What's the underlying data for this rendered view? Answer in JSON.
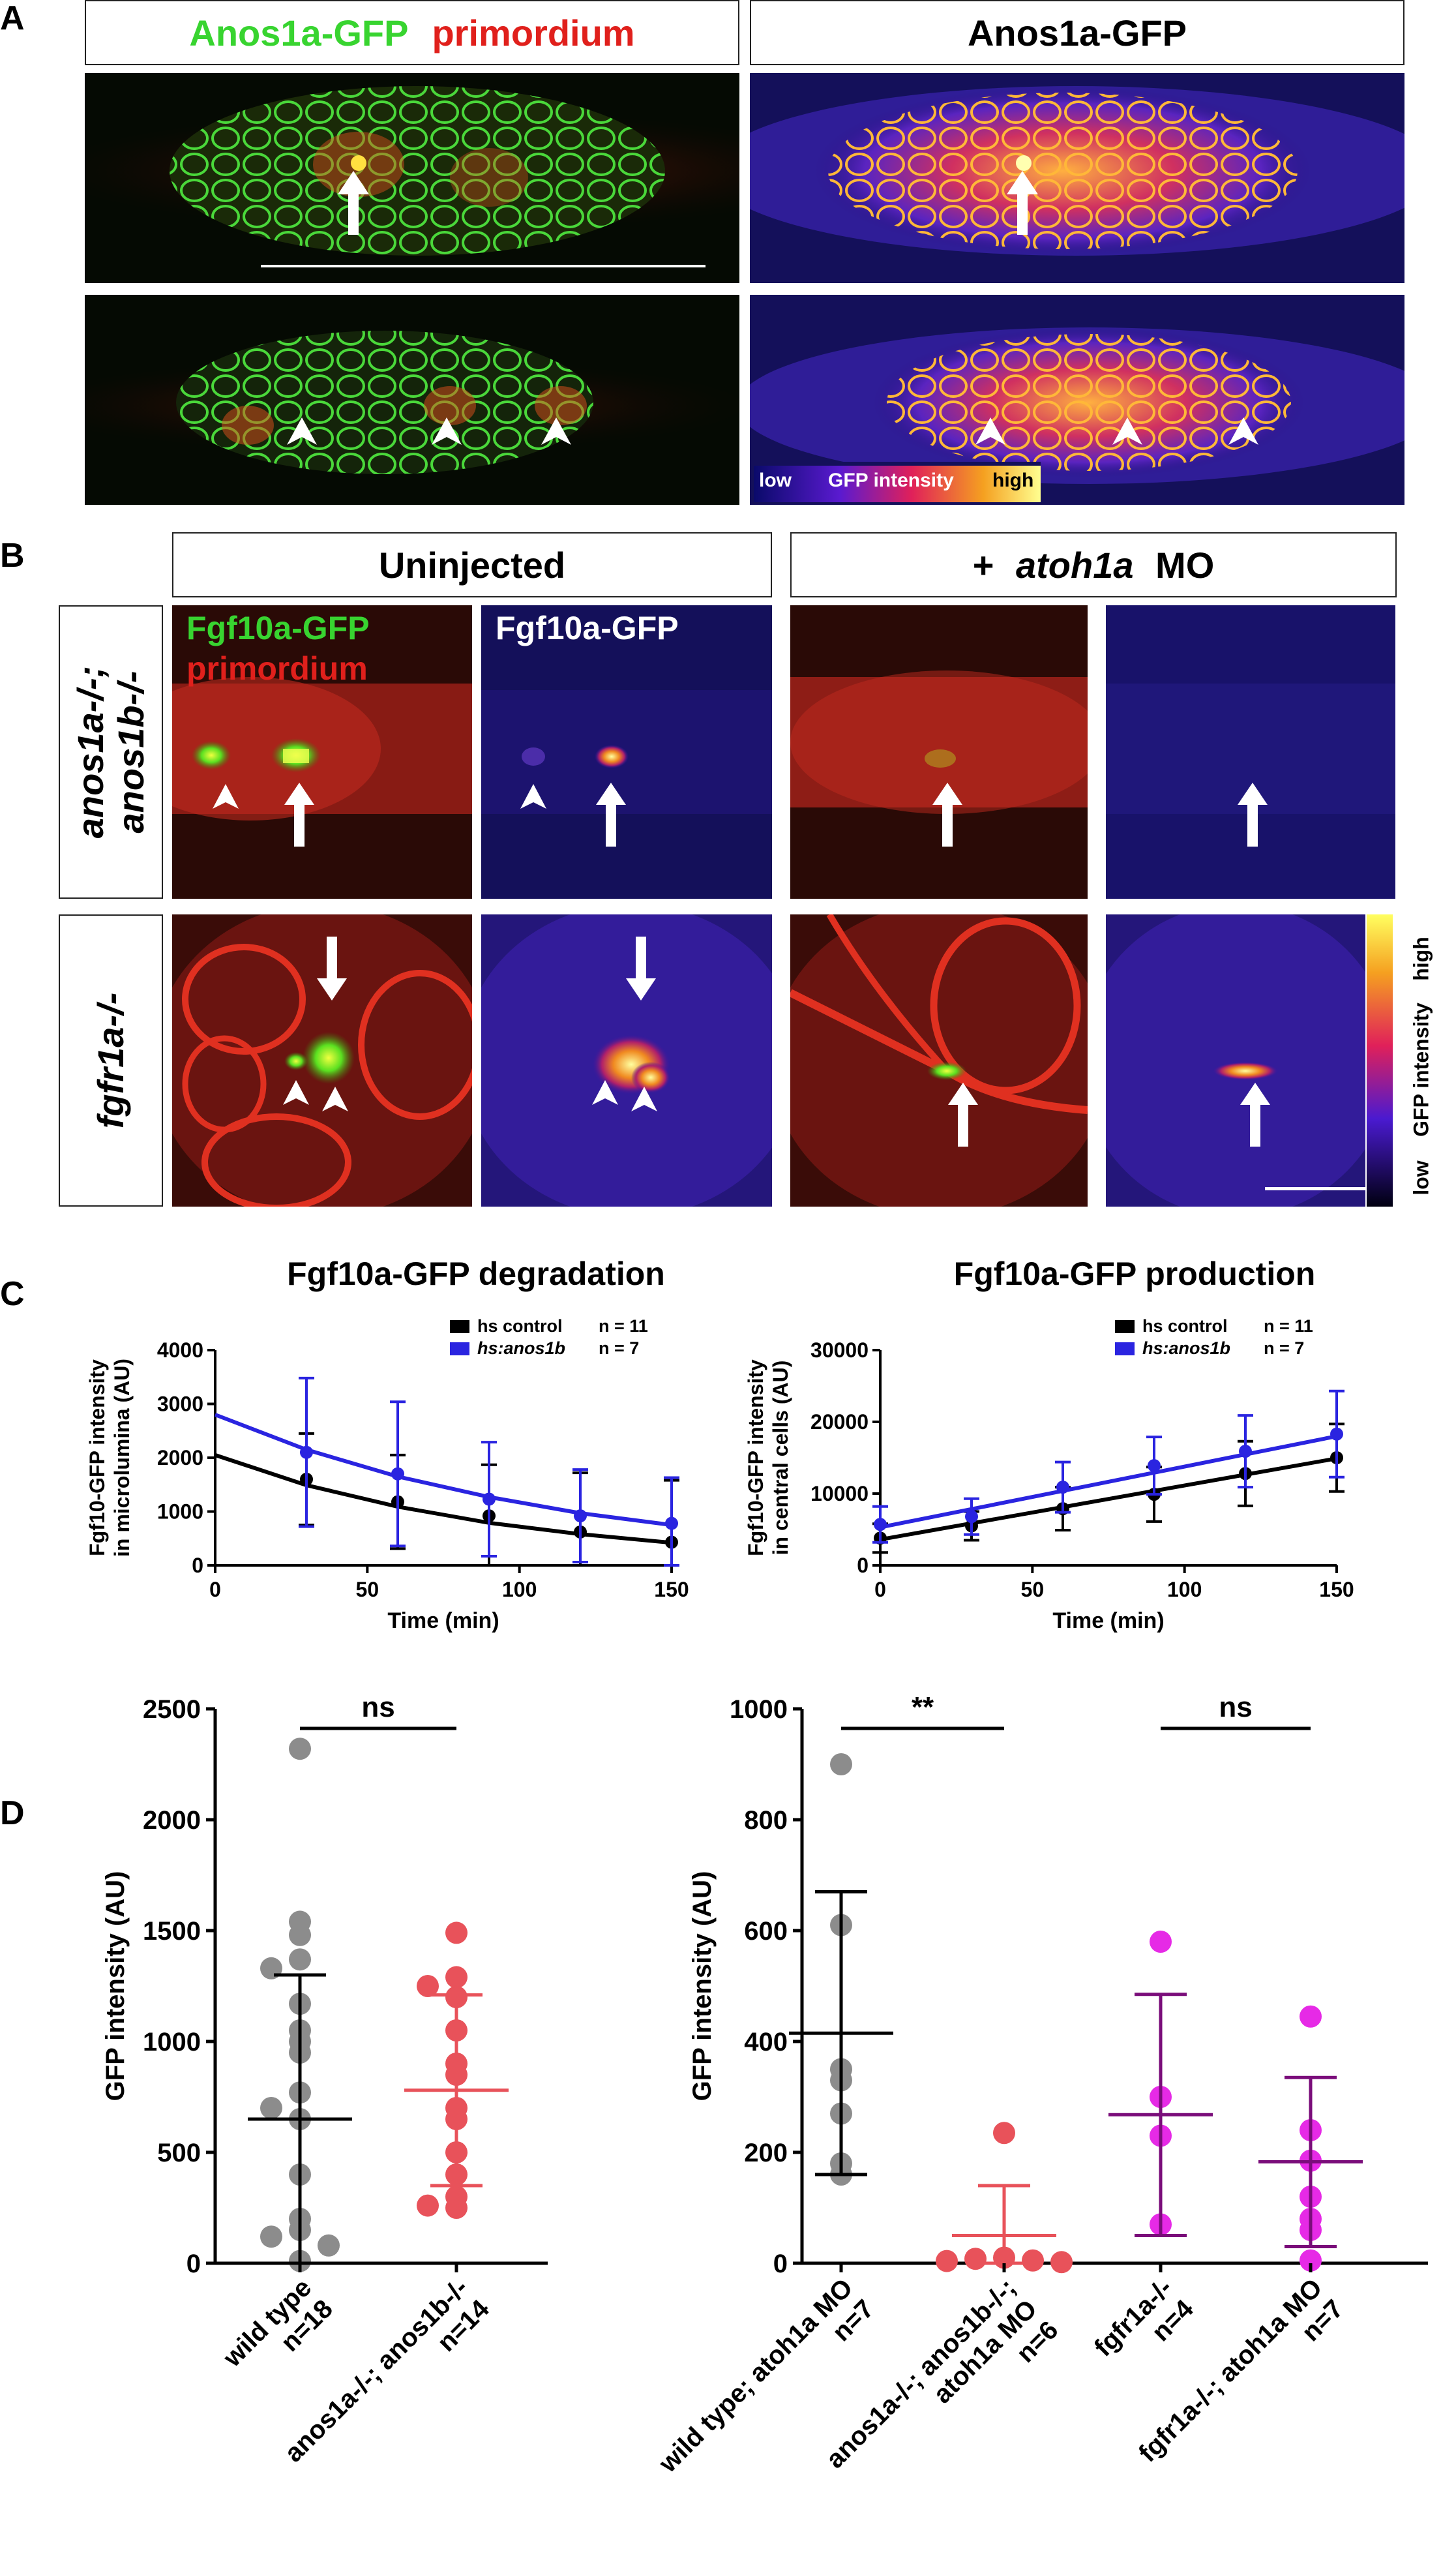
{
  "panel_a": {
    "letter": "A",
    "header_left_green": "Anos1a-GFP",
    "header_left_red": "primordium",
    "header_right": "Anos1a-GFP",
    "scale_low": "low",
    "scale_mid": "GFP intensity",
    "scale_high": "high"
  },
  "panel_b": {
    "letter": "B",
    "header_left": "Uninjected",
    "header_right_prefix": "+ ",
    "header_right_gene": "atoh1a",
    "header_right_suffix": " MO",
    "row1_label_line1": "anos1a-/-;",
    "row1_label_line2": "anos1b-/-",
    "row2_label": "fgfr1a-/-",
    "overlay_green": "Fgf10a-GFP",
    "overlay_red": "primordium",
    "overlay_white": "Fgf10a-GFP",
    "scale_low": "low",
    "scale_mid": "GFP intensity",
    "scale_high": "high"
  },
  "panel_c": {
    "letter": "C"
  },
  "panel_d": {
    "letter": "D"
  },
  "colors": {
    "green": "#38d430",
    "red": "#e0201c",
    "black": "#000000",
    "blue": "#2a24e0",
    "grey": "#8c8c8c",
    "salmon": "#e8525a",
    "purple": "#7a0d7a",
    "magenta": "#e62ae6"
  },
  "chart_data": [
    {
      "type": "line",
      "title": "Fgf10a-GFP degradation",
      "xlabel": "Time (min)",
      "ylabel_line1": "Fgf10-GFP intensity",
      "ylabel_line2": "in microlumina (AU)",
      "xlim": [
        0,
        150
      ],
      "ylim": [
        0,
        4000
      ],
      "xticks": [
        0,
        50,
        100,
        150
      ],
      "yticks": [
        0,
        1000,
        2000,
        3000,
        4000
      ],
      "x": [
        30,
        60,
        90,
        120,
        150
      ],
      "legend_placement": "top-right",
      "series": [
        {
          "name": "hs control",
          "n_label": "n = 11",
          "color": "#000000",
          "values": [
            1600,
            1180,
            920,
            620,
            430
          ],
          "err": [
            850,
            870,
            950,
            1100,
            1150
          ],
          "fit": [
            2050,
            1490,
            1090,
            790,
            580,
            420
          ]
        },
        {
          "name": "hs:anos1b",
          "n_label": "n = 7",
          "color": "#2a24e0",
          "values": [
            2100,
            1700,
            1230,
            920,
            780
          ],
          "err": [
            1380,
            1340,
            1060,
            860,
            850
          ],
          "fit": [
            2800,
            2150,
            1650,
            1270,
            970,
            750
          ]
        }
      ],
      "fit_x": [
        0,
        30,
        60,
        90,
        120,
        150
      ]
    },
    {
      "type": "line",
      "title": "Fgf10a-GFP production",
      "xlabel": "Time (min)",
      "ylabel_line1": "Fgf10-GFP intensity",
      "ylabel_line2": "in central cells (AU)",
      "xlim": [
        0,
        150
      ],
      "ylim": [
        0,
        30000
      ],
      "xticks": [
        0,
        50,
        100,
        150
      ],
      "yticks": [
        0,
        10000,
        20000,
        30000
      ],
      "x": [
        0,
        30,
        60,
        90,
        120,
        150
      ],
      "legend_placement": "top-right",
      "series": [
        {
          "name": "hs control",
          "n_label": "n = 11",
          "color": "#000000",
          "values": [
            3800,
            5500,
            7900,
            9900,
            12800,
            15000
          ],
          "err": [
            2000,
            2000,
            3000,
            3800,
            4500,
            4700
          ]
        },
        {
          "name": "hs:anos1b",
          "n_label": "n = 7",
          "color": "#2a24e0",
          "values": [
            5700,
            6800,
            10900,
            13900,
            15900,
            18300
          ],
          "err": [
            2500,
            2500,
            3500,
            4000,
            5000,
            6000
          ]
        }
      ],
      "fit_x": [
        0,
        150
      ],
      "fits": [
        [
          3600,
          14900
        ],
        [
          5300,
          18000
        ]
      ]
    },
    {
      "type": "scatter",
      "ylabel": "GFP intensity (AU)",
      "ylim": [
        0,
        2500
      ],
      "yticks": [
        0,
        500,
        1000,
        1500,
        2000,
        2500
      ],
      "significance": [
        {
          "from": 0,
          "to": 1,
          "label": "ns"
        }
      ],
      "groups": [
        {
          "label_line1": "wild type",
          "label_line2": "n=18",
          "italic": false,
          "color": "#8c8c8c",
          "bar_color": "#000000",
          "mean": 650,
          "sd_low": 0,
          "sd_high": 1300,
          "points": [
            2320,
            1540,
            1480,
            1370,
            1330,
            1170,
            1050,
            1000,
            950,
            770,
            700,
            650,
            400,
            200,
            150,
            120,
            80,
            10
          ]
        },
        {
          "label_line1": "anos1a-/-; anos1b-/-",
          "label_line2": "n=14",
          "italic": true,
          "color": "#e8525a",
          "bar_color": "#e8525a",
          "mean": 780,
          "sd_low": 350,
          "sd_high": 1210,
          "points": [
            1490,
            1290,
            1250,
            1200,
            1050,
            900,
            850,
            700,
            650,
            500,
            400,
            300,
            260,
            250
          ]
        }
      ]
    },
    {
      "type": "scatter",
      "ylabel": "GFP intensity (AU)",
      "ylim": [
        0,
        1000
      ],
      "yticks": [
        0,
        200,
        400,
        600,
        800,
        1000
      ],
      "significance": [
        {
          "from": 0,
          "to": 1,
          "label": "**"
        },
        {
          "from": 2,
          "to": 3,
          "label": "ns"
        }
      ],
      "groups": [
        {
          "label_line1": "wild type; atoh1a MO",
          "label_line2": "n=7",
          "color": "#8c8c8c",
          "bar_color": "#000000",
          "mean": 415,
          "sd_low": 160,
          "sd_high": 670,
          "points": [
            900,
            610,
            350,
            330,
            270,
            180,
            160
          ]
        },
        {
          "label_line1": "anos1a-/-; anos1b-/-;",
          "label_line2": "atoh1a MO",
          "label_line3": "n=6",
          "color": "#e8525a",
          "bar_color": "#e8525a",
          "mean": 50,
          "sd_low": 0,
          "sd_high": 140,
          "points": [
            235,
            10,
            8,
            5,
            4,
            2
          ]
        },
        {
          "label_line1": "fgfr1a-/-",
          "label_line2": "n=4",
          "color": "#e62ae6",
          "bar_color": "#7a0d7a",
          "mean": 268,
          "sd_low": 50,
          "sd_high": 485,
          "points": [
            580,
            300,
            230,
            70
          ]
        },
        {
          "label_line1": "fgfr1a-/-; atoh1a MO",
          "label_line2": "n=7",
          "color": "#e62ae6",
          "bar_color": "#7a0d7a",
          "mean": 183,
          "sd_low": 30,
          "sd_high": 335,
          "points": [
            445,
            240,
            185,
            120,
            80,
            60,
            5
          ]
        }
      ]
    }
  ]
}
